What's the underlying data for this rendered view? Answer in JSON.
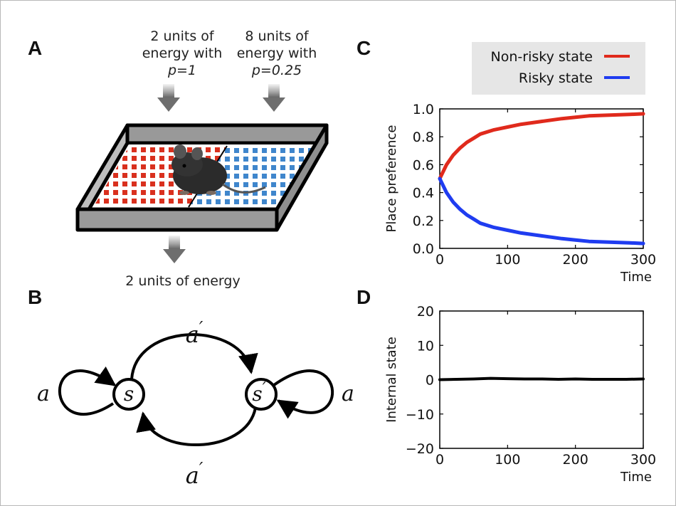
{
  "panels": {
    "a": {
      "letter": "A",
      "left_label": [
        "2 units of",
        "energy with",
        "p=1"
      ],
      "right_label": [
        "8 units of",
        "energy with",
        "p=0.25"
      ],
      "bottom_label": "2 units of energy",
      "colors": {
        "left_tiles": "#d9301e",
        "right_tiles": "#3f86cc",
        "box_wall": "#999999",
        "arrow": "#7a7a7a"
      },
      "icons": [
        "down-arrow-icon",
        "mouse-icon"
      ]
    },
    "b": {
      "letter": "B",
      "state_left": "s",
      "state_right": "s",
      "state_right_prime": "′",
      "loop_left_label": "a",
      "loop_right_label": "a",
      "top_arc_label": "a",
      "bottom_arc_label": "a",
      "arc_prime": "′"
    },
    "c": {
      "letter": "C",
      "legend_bg": "#e6e6e6"
    },
    "d": {
      "letter": "D"
    }
  },
  "chart_data": [
    {
      "type": "line",
      "panel": "C",
      "xlabel": "Time",
      "ylabel": "Place preference",
      "xlim": [
        0,
        300
      ],
      "ylim": [
        0.0,
        1.0
      ],
      "xticks": [
        0,
        100,
        200,
        300
      ],
      "yticks": [
        0.0,
        0.2,
        0.4,
        0.6,
        0.8,
        1.0
      ],
      "xtick_labels": [
        "0",
        "100",
        "200",
        "300"
      ],
      "ytick_labels": [
        "0.0",
        "0.2",
        "0.4",
        "0.6",
        "0.8",
        "1.0"
      ],
      "legend_position": "top-right",
      "x": [
        0,
        10,
        20,
        30,
        40,
        50,
        60,
        80,
        100,
        120,
        150,
        180,
        200,
        220,
        250,
        280,
        300
      ],
      "series": [
        {
          "name": "Non-risky state",
          "color": "#e02a1c",
          "values": [
            0.5,
            0.6,
            0.67,
            0.72,
            0.76,
            0.79,
            0.82,
            0.85,
            0.87,
            0.89,
            0.91,
            0.93,
            0.94,
            0.95,
            0.955,
            0.96,
            0.965
          ]
        },
        {
          "name": "Risky state",
          "color": "#1f3cf0",
          "values": [
            0.5,
            0.4,
            0.33,
            0.28,
            0.24,
            0.21,
            0.18,
            0.15,
            0.13,
            0.11,
            0.09,
            0.07,
            0.06,
            0.05,
            0.045,
            0.04,
            0.035
          ]
        }
      ]
    },
    {
      "type": "line",
      "panel": "D",
      "xlabel": "Time",
      "ylabel": "Internal state",
      "xlim": [
        0,
        300
      ],
      "ylim": [
        -20,
        20
      ],
      "xticks": [
        0,
        100,
        200,
        300
      ],
      "yticks": [
        -20,
        -10,
        0,
        10,
        20
      ],
      "xtick_labels": [
        "0",
        "100",
        "200",
        "300"
      ],
      "ytick_labels": [
        "−20",
        "−10",
        "0",
        "10",
        "20"
      ],
      "x": [
        0,
        25,
        50,
        75,
        100,
        125,
        150,
        175,
        200,
        225,
        250,
        275,
        300
      ],
      "series": [
        {
          "color": "#000000",
          "values": [
            0.0,
            0.1,
            0.2,
            0.4,
            0.3,
            0.2,
            0.2,
            0.1,
            0.2,
            0.1,
            0.1,
            0.1,
            0.2
          ]
        }
      ]
    }
  ]
}
